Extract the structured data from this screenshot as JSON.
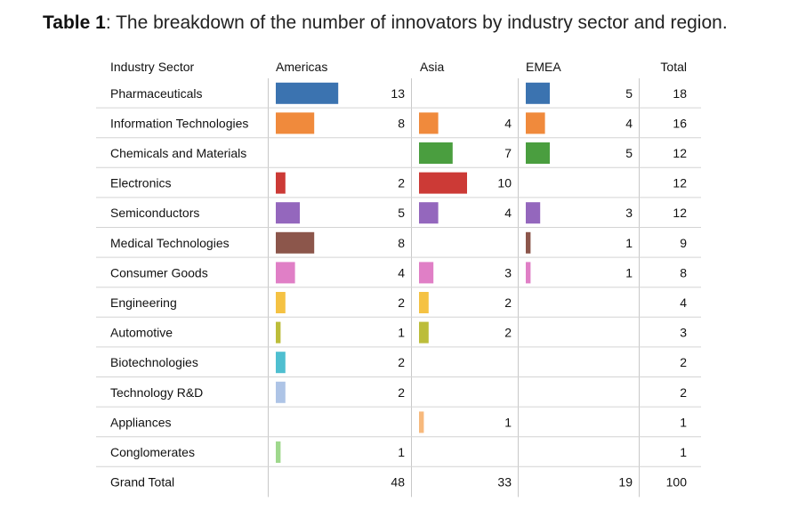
{
  "caption": {
    "bold": "Table 1",
    "text": ": The breakdown of the number of innovators by industry sector and region."
  },
  "chart_data": {
    "type": "table",
    "columns": [
      "Industry Sector",
      "Americas",
      "Asia",
      "EMEA",
      "Total"
    ],
    "regions": [
      "Americas",
      "Asia",
      "EMEA"
    ],
    "rows": [
      {
        "sector": "Pharmaceuticals",
        "Americas": 13,
        "Asia": null,
        "EMEA": 5,
        "Total": 18,
        "color": "#3b73b0"
      },
      {
        "sector": "Information Technologies",
        "Americas": 8,
        "Asia": 4,
        "EMEA": 4,
        "Total": 16,
        "color": "#f08a3c"
      },
      {
        "sector": "Chemicals and Materials",
        "Americas": null,
        "Asia": 7,
        "EMEA": 5,
        "Total": 12,
        "color": "#4a9e3f"
      },
      {
        "sector": "Electronics",
        "Americas": 2,
        "Asia": 10,
        "EMEA": null,
        "Total": 12,
        "color": "#cc3a36"
      },
      {
        "sector": "Semiconductors",
        "Americas": 5,
        "Asia": 4,
        "EMEA": 3,
        "Total": 12,
        "color": "#9467bd"
      },
      {
        "sector": "Medical Technologies",
        "Americas": 8,
        "Asia": null,
        "EMEA": 1,
        "Total": 9,
        "color": "#8c564b"
      },
      {
        "sector": "Consumer Goods",
        "Americas": 4,
        "Asia": 3,
        "EMEA": 1,
        "Total": 8,
        "color": "#e07fc6"
      },
      {
        "sector": "Engineering",
        "Americas": 2,
        "Asia": 2,
        "EMEA": null,
        "Total": 4,
        "color": "#f5c243"
      },
      {
        "sector": "Automotive",
        "Americas": 1,
        "Asia": 2,
        "EMEA": null,
        "Total": 3,
        "color": "#bcbd3a"
      },
      {
        "sector": "Biotechnologies",
        "Americas": 2,
        "Asia": null,
        "EMEA": null,
        "Total": 2,
        "color": "#4fbfd0"
      },
      {
        "sector": "Technology R&D",
        "Americas": 2,
        "Asia": null,
        "EMEA": null,
        "Total": 2,
        "color": "#aec4e6"
      },
      {
        "sector": "Appliances",
        "Americas": null,
        "Asia": 1,
        "EMEA": null,
        "Total": 1,
        "color": "#f7b97c"
      },
      {
        "sector": "Conglomerates",
        "Americas": 1,
        "Asia": null,
        "EMEA": null,
        "Total": 1,
        "color": "#9fd88d"
      }
    ],
    "grand_total": {
      "label": "Grand Total",
      "Americas": 48,
      "Asia": 33,
      "EMEA": 19,
      "Total": 100
    }
  }
}
